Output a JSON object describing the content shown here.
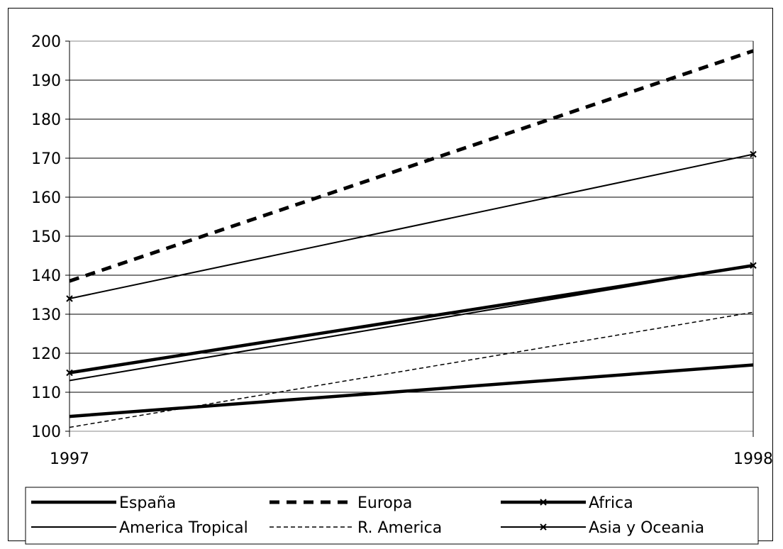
{
  "chart_data": {
    "type": "line",
    "title": "",
    "xlabel": "",
    "ylabel": "",
    "x": [
      "1997",
      "1998"
    ],
    "ylim": [
      100,
      200
    ],
    "yticks": [
      100,
      110,
      120,
      130,
      140,
      150,
      160,
      170,
      180,
      190,
      200
    ],
    "grid": "horizontal",
    "legend_position": "bottom",
    "series": [
      {
        "name": "España",
        "values": [
          103.8,
          117
        ],
        "style": "thick-solid",
        "marker": "none"
      },
      {
        "name": "Europa",
        "values": [
          138.5,
          197.5
        ],
        "style": "thick-dashed",
        "marker": "none"
      },
      {
        "name": "Africa",
        "values": [
          115,
          142.5
        ],
        "style": "thick-solid",
        "marker": "x"
      },
      {
        "name": "America Tropical",
        "values": [
          113,
          142.5
        ],
        "style": "thin-solid",
        "marker": "none"
      },
      {
        "name": "R. America",
        "values": [
          101,
          130.5
        ],
        "style": "thin-dashed",
        "marker": "none"
      },
      {
        "name": "Asia y Oceania",
        "values": [
          134,
          171
        ],
        "style": "thin-solid",
        "marker": "x"
      }
    ]
  }
}
